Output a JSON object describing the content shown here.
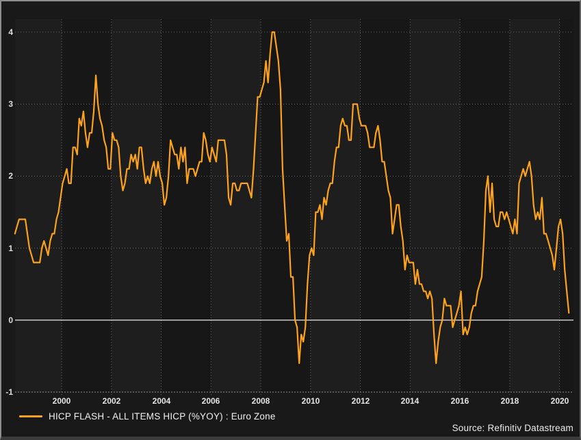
{
  "legend": {
    "label": "HICP FLASH - ALL ITEMS HICP (%YOY) : Euro Zone",
    "swatch_color": "#FFA21E"
  },
  "source": {
    "note": "Source: Refinitiv Datastream"
  },
  "colors": {
    "background": "#191919",
    "band_light": "#1e1e1e",
    "band_dark": "#171717",
    "gridline": "#6a6a6a",
    "axis_line": "#8f8f8f",
    "zero_line": "#c9c9c9",
    "line": "#FFA21E",
    "axis_text": "#e2e2e2",
    "legend_text": "#f1f1f1",
    "source_text": "#ececec"
  },
  "chart_data": {
    "type": "line",
    "title": "",
    "xlabel": "",
    "ylabel": "",
    "grid": "dotted",
    "zero_line": true,
    "legend_position": "bottom-left",
    "ylim": [
      -1,
      4.18
    ],
    "xlim_years": [
      1998.13,
      2020.56
    ],
    "band_width_years": 2,
    "y_axis": {
      "ticks": [
        {
          "v": 4,
          "label": "4"
        },
        {
          "v": 3,
          "label": "3"
        },
        {
          "v": 2,
          "label": "2"
        },
        {
          "v": 1,
          "label": "1"
        },
        {
          "v": 0,
          "label": "0"
        },
        {
          "v": -1,
          "label": "-1"
        }
      ]
    },
    "x_axis": {
      "ticks": [
        {
          "v": 2000,
          "label": "2000"
        },
        {
          "v": 2002,
          "label": "2002"
        },
        {
          "v": 2004,
          "label": "2004"
        },
        {
          "v": 2006,
          "label": "2006"
        },
        {
          "v": 2008,
          "label": "2008"
        },
        {
          "v": 2010,
          "label": "2010"
        },
        {
          "v": 2012,
          "label": "2012"
        },
        {
          "v": 2014,
          "label": "2014"
        },
        {
          "v": 2016,
          "label": "2016"
        },
        {
          "v": 2018,
          "label": "2018"
        },
        {
          "v": 2020,
          "label": "2020"
        }
      ]
    },
    "series": [
      {
        "name": "HICP FLASH - ALL ITEMS HICP (%YOY) : Euro Zone",
        "color": "#FFA21E",
        "frequency": "monthly",
        "start_year": 1998,
        "start_month": 2,
        "values": [
          1.2,
          1.3,
          1.4,
          1.4,
          1.4,
          1.4,
          1.2,
          1.0,
          0.9,
          0.8,
          0.8,
          0.8,
          0.8,
          1.0,
          1.1,
          1.0,
          0.9,
          1.1,
          1.2,
          1.2,
          1.4,
          1.5,
          1.7,
          1.9,
          2.0,
          2.1,
          1.9,
          1.9,
          2.4,
          2.4,
          2.3,
          2.8,
          2.7,
          2.9,
          2.6,
          2.4,
          2.6,
          2.6,
          2.9,
          3.4,
          3.0,
          2.8,
          2.7,
          2.5,
          2.4,
          2.1,
          2.1,
          2.6,
          2.5,
          2.5,
          2.4,
          2.0,
          1.8,
          1.9,
          2.1,
          2.1,
          2.3,
          2.2,
          2.3,
          2.1,
          2.4,
          2.4,
          2.1,
          1.9,
          2.0,
          1.9,
          2.1,
          2.2,
          2.0,
          2.2,
          2.0,
          1.9,
          1.6,
          1.7,
          2.0,
          2.5,
          2.4,
          2.3,
          2.3,
          2.1,
          2.4,
          2.2,
          2.4,
          1.9,
          2.1,
          2.1,
          2.1,
          2.0,
          2.1,
          2.2,
          2.2,
          2.6,
          2.5,
          2.3,
          2.2,
          2.4,
          2.3,
          2.2,
          2.5,
          2.5,
          2.5,
          2.5,
          2.3,
          1.7,
          1.6,
          1.9,
          1.9,
          1.8,
          1.8,
          1.9,
          1.9,
          1.9,
          1.9,
          1.8,
          1.7,
          2.1,
          2.6,
          3.1,
          3.1,
          3.2,
          3.3,
          3.6,
          3.3,
          3.7,
          4.0,
          4.0,
          3.8,
          3.6,
          3.2,
          2.1,
          1.6,
          1.1,
          1.2,
          0.6,
          0.6,
          0.0,
          -0.1,
          -0.6,
          -0.2,
          -0.3,
          -0.1,
          0.5,
          0.9,
          1.0,
          0.9,
          1.5,
          1.5,
          1.6,
          1.4,
          1.7,
          1.6,
          1.8,
          1.9,
          1.9,
          2.2,
          2.4,
          2.4,
          2.7,
          2.8,
          2.7,
          2.7,
          2.5,
          2.5,
          3.0,
          3.0,
          3.0,
          2.8,
          2.7,
          2.7,
          2.7,
          2.6,
          2.4,
          2.4,
          2.4,
          2.6,
          2.7,
          2.5,
          2.2,
          2.2,
          2.0,
          1.8,
          1.7,
          1.2,
          1.4,
          1.6,
          1.6,
          1.3,
          1.1,
          0.7,
          0.9,
          0.8,
          0.8,
          0.8,
          0.5,
          0.7,
          0.5,
          0.5,
          0.4,
          0.4,
          0.3,
          0.4,
          0.3,
          -0.2,
          -0.6,
          -0.3,
          -0.1,
          0.0,
          0.3,
          0.2,
          0.2,
          0.2,
          -0.1,
          0.0,
          0.1,
          0.2,
          0.4,
          -0.2,
          -0.1,
          -0.2,
          -0.1,
          0.1,
          0.2,
          0.2,
          0.4,
          0.5,
          0.6,
          1.1,
          1.8,
          2.0,
          1.5,
          1.9,
          1.4,
          1.3,
          1.3,
          1.5,
          1.5,
          1.4,
          1.5,
          1.4,
          1.3,
          1.2,
          1.4,
          1.2,
          1.9,
          2.0,
          2.1,
          2.0,
          2.1,
          2.2,
          2.0,
          1.6,
          1.4,
          1.5,
          1.4,
          1.7,
          1.2,
          1.2,
          1.1,
          1.0,
          0.9,
          0.7,
          1.0,
          1.3,
          1.4,
          1.2,
          0.7,
          0.4,
          0.1
        ]
      }
    ]
  }
}
